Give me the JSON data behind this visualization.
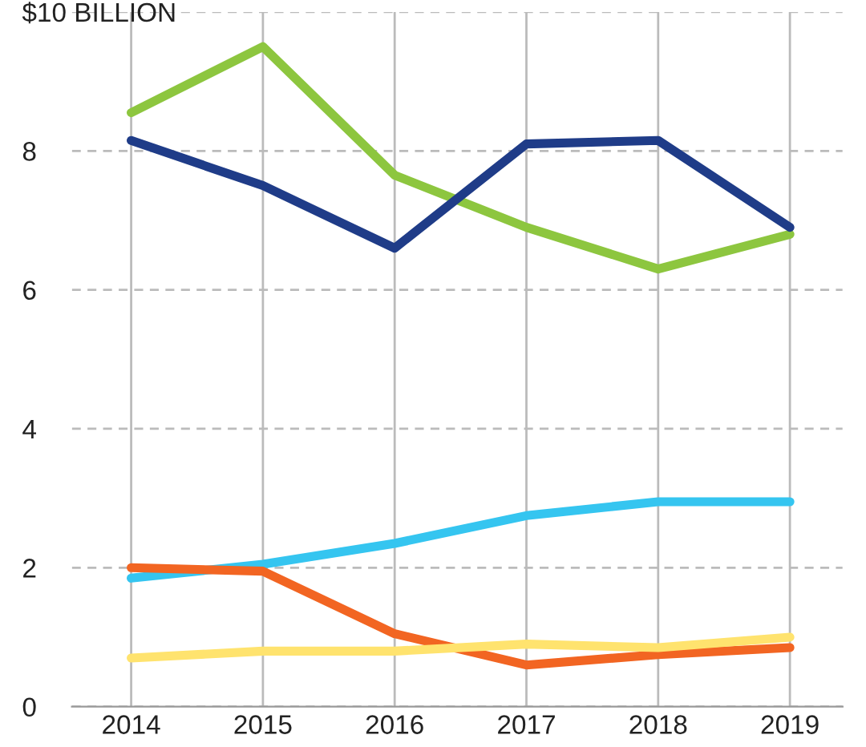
{
  "chart_data": {
    "type": "line",
    "categories": [
      "2014",
      "2015",
      "2016",
      "2017",
      "2018",
      "2019"
    ],
    "series": [
      {
        "color": "#8dc63f",
        "values": [
          8.55,
          9.5,
          7.65,
          6.9,
          6.3,
          6.8
        ]
      },
      {
        "color": "#1f3c88",
        "values": [
          8.15,
          7.5,
          6.6,
          8.1,
          8.15,
          6.9
        ]
      },
      {
        "color": "#35c5f0",
        "values": [
          1.85,
          2.05,
          2.35,
          2.75,
          2.95,
          2.95
        ]
      },
      {
        "color": "#f26522",
        "values": [
          2.0,
          1.95,
          1.05,
          0.6,
          0.75,
          0.85
        ]
      },
      {
        "color": "#ffe36e",
        "values": [
          0.7,
          0.8,
          0.8,
          0.9,
          0.85,
          1.0
        ]
      }
    ],
    "ylim": [
      0,
      10
    ],
    "yticks": [
      0,
      2,
      4,
      6,
      8,
      {
        "value": 10,
        "label": "$10 BILLION"
      }
    ],
    "grid": true,
    "line_style": "solid",
    "marker": "none"
  }
}
